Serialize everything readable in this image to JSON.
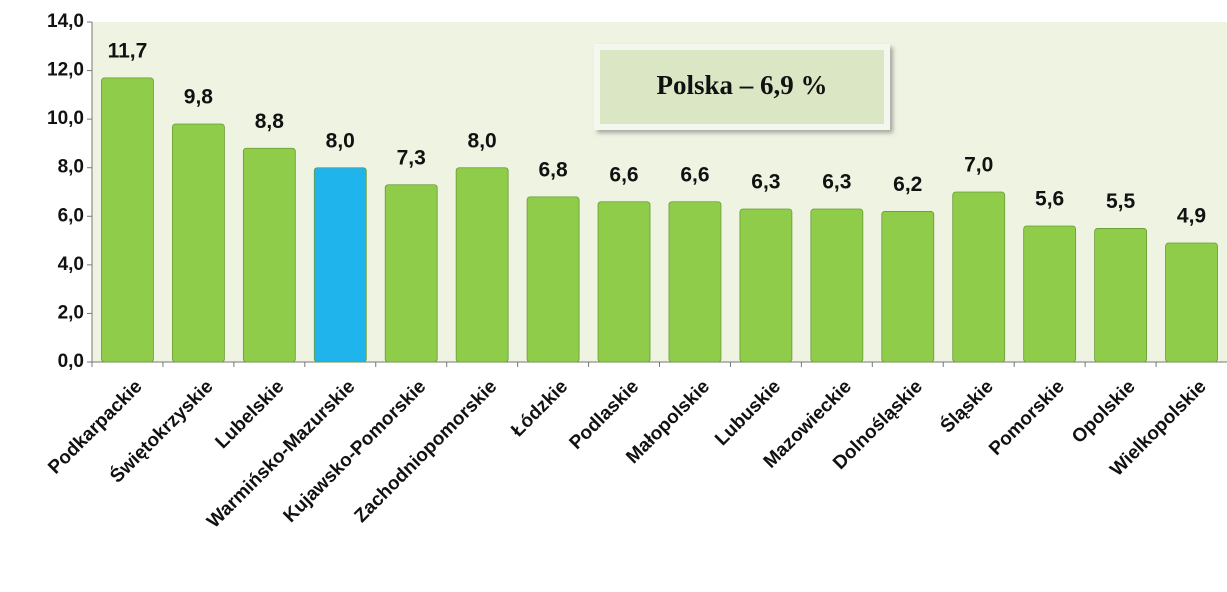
{
  "chart_data": {
    "type": "bar",
    "annotation": "Polska – 6,9 %",
    "categories": [
      "Podkarpackie",
      "Świętokrzyskie",
      "Lubelskie",
      "Warmińsko-Mazurskie",
      "Kujawsko-Pomorskie",
      "Zachodniopomorskie",
      "Łódzkie",
      "Podlaskie",
      "Małopolskie",
      "Lubuskie",
      "Mazowieckie",
      "Dolnośląskie",
      "Śląskie",
      "Pomorskie",
      "Opolskie",
      "Wielkopolskie"
    ],
    "values": [
      11.7,
      9.8,
      8.8,
      8.0,
      7.3,
      8.0,
      6.8,
      6.6,
      6.6,
      6.3,
      6.3,
      6.2,
      7.0,
      5.6,
      5.5,
      4.9
    ],
    "value_labels": [
      "11,7",
      "9,8",
      "8,8",
      "8,0",
      "7,3",
      "8,0",
      "6,8",
      "6,6",
      "6,6",
      "6,3",
      "6,3",
      "6,2",
      "7,0",
      "5,6",
      "5,5",
      "4,9"
    ],
    "colors": [
      "#8fcc4a",
      "#8fcc4a",
      "#8fcc4a",
      "#1fb4ec",
      "#8fcc4a",
      "#8fcc4a",
      "#8fcc4a",
      "#8fcc4a",
      "#8fcc4a",
      "#8fcc4a",
      "#8fcc4a",
      "#8fcc4a",
      "#8fcc4a",
      "#8fcc4a",
      "#8fcc4a",
      "#8fcc4a"
    ],
    "ylim": [
      0,
      14
    ],
    "yticks": [
      {
        "value": 0,
        "label": "0,0"
      },
      {
        "value": 2,
        "label": "2,0"
      },
      {
        "value": 4,
        "label": "4,0"
      },
      {
        "value": 6,
        "label": "6,0"
      },
      {
        "value": 8,
        "label": "8,0"
      },
      {
        "value": 10,
        "label": "10,0"
      },
      {
        "value": 12,
        "label": "12,0"
      },
      {
        "value": 14,
        "label": "14,0"
      }
    ]
  }
}
